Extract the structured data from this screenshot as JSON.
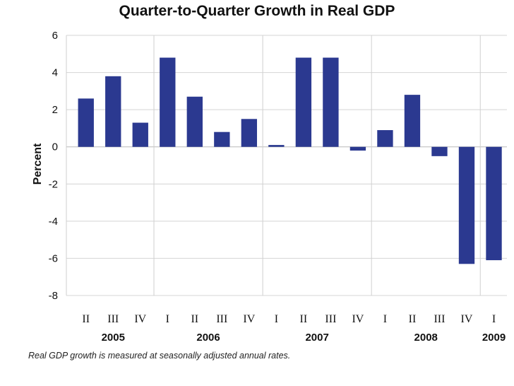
{
  "chart_data": {
    "type": "bar",
    "title": "Quarter-to-Quarter Growth in Real GDP",
    "ylabel": "Percent",
    "xlabel": "",
    "ylim": [
      -8,
      6
    ],
    "yticks": [
      6,
      4,
      2,
      0,
      -2,
      -4,
      -6,
      -8
    ],
    "grid": true,
    "bar_color": "#2b3990",
    "categories": [
      {
        "quarter": "II",
        "year": "2005",
        "value": 2.6
      },
      {
        "quarter": "III",
        "year": "2005",
        "value": 3.8
      },
      {
        "quarter": "IV",
        "year": "2005",
        "value": 1.3
      },
      {
        "quarter": "I",
        "year": "2006",
        "value": 4.8
      },
      {
        "quarter": "II",
        "year": "2006",
        "value": 2.7
      },
      {
        "quarter": "III",
        "year": "2006",
        "value": 0.8
      },
      {
        "quarter": "IV",
        "year": "2006",
        "value": 1.5
      },
      {
        "quarter": "I",
        "year": "2007",
        "value": 0.1
      },
      {
        "quarter": "II",
        "year": "2007",
        "value": 4.8
      },
      {
        "quarter": "III",
        "year": "2007",
        "value": 4.8
      },
      {
        "quarter": "IV",
        "year": "2007",
        "value": -0.2
      },
      {
        "quarter": "I",
        "year": "2008",
        "value": 0.9
      },
      {
        "quarter": "II",
        "year": "2008",
        "value": 2.8
      },
      {
        "quarter": "III",
        "year": "2008",
        "value": -0.5
      },
      {
        "quarter": "IV",
        "year": "2008",
        "value": -6.3
      },
      {
        "quarter": "I",
        "year": "2009",
        "value": -6.1
      }
    ],
    "years": [
      "2005",
      "2006",
      "2007",
      "2008",
      "2009"
    ]
  },
  "footnote": "Real GDP growth is measured at seasonally adjusted annual rates."
}
